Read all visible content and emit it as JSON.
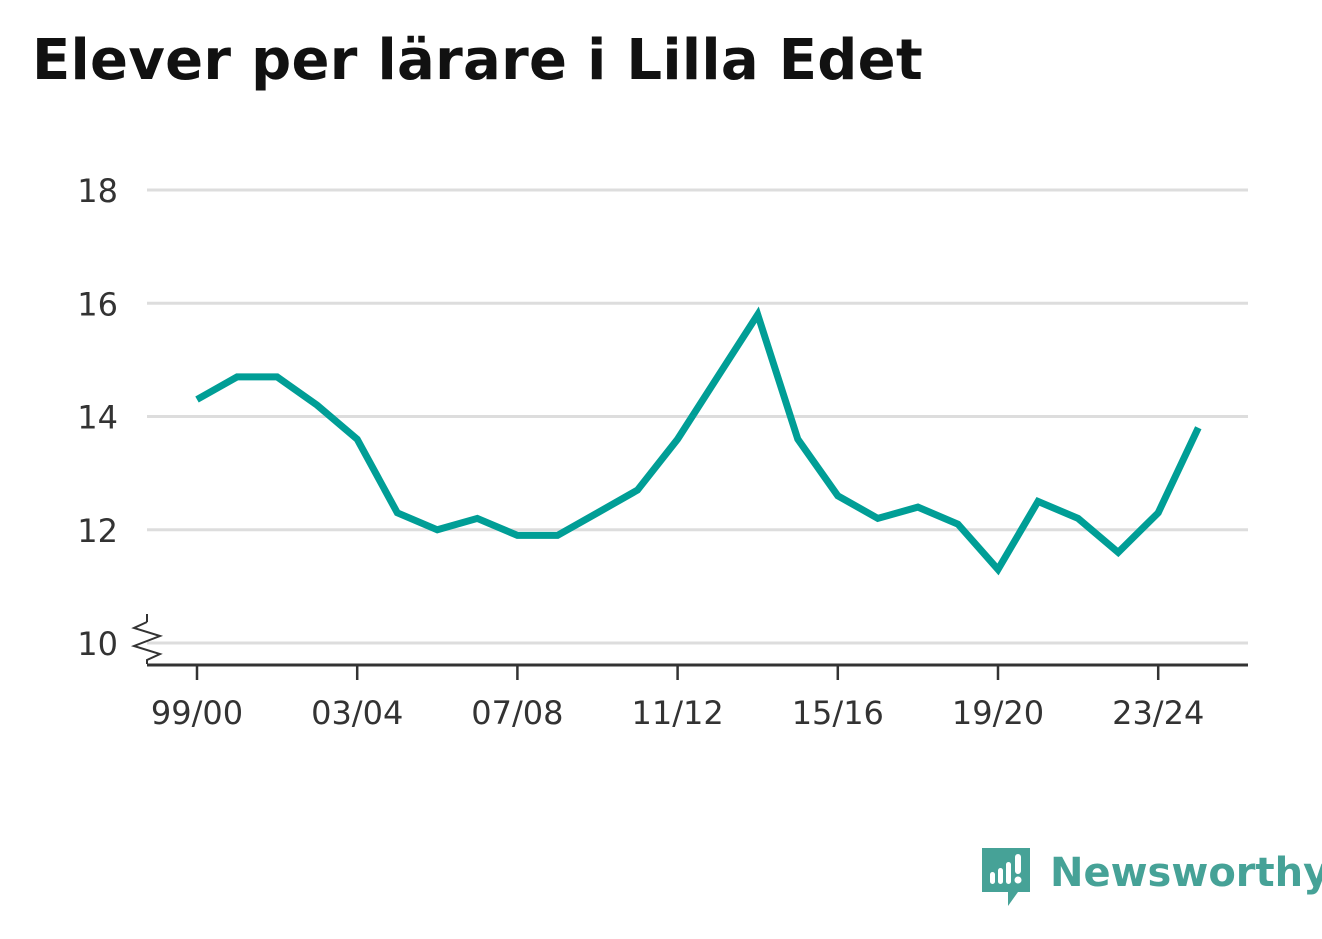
{
  "title": "Elever per lärare i Lilla Edet",
  "brand": {
    "name": "Newsworthy",
    "icon": "newsworthy-logo-icon",
    "color": "#46a297"
  },
  "chart_data": {
    "type": "line",
    "title": "Elever per lärare i Lilla Edet",
    "xlabel": "",
    "ylabel": "",
    "x": [
      "99/00",
      "00/01",
      "01/02",
      "02/03",
      "03/04",
      "04/05",
      "05/06",
      "06/07",
      "07/08",
      "08/09",
      "09/10",
      "10/11",
      "11/12",
      "12/13",
      "13/14",
      "14/15",
      "15/16",
      "16/17",
      "17/18",
      "18/19",
      "19/20",
      "20/21",
      "21/22",
      "22/23",
      "23/24",
      "24/25"
    ],
    "series": [
      {
        "values": [
          14.3,
          14.7,
          14.7,
          14.2,
          13.6,
          12.3,
          12.0,
          12.2,
          11.9,
          11.9,
          12.3,
          12.7,
          13.6,
          14.7,
          15.8,
          13.6,
          12.6,
          12.2,
          12.4,
          12.1,
          11.3,
          12.5,
          12.2,
          11.6,
          12.3,
          13.8
        ],
        "color": "#009e96"
      }
    ],
    "x_tick_labels": [
      "99/00",
      "03/04",
      "07/08",
      "11/12",
      "15/16",
      "19/20",
      "23/24"
    ],
    "y_tick_labels": [
      "10",
      "12",
      "14",
      "16",
      "18"
    ],
    "ylim": [
      10,
      18
    ],
    "axis_break": true,
    "grid": true,
    "legend": "none"
  }
}
